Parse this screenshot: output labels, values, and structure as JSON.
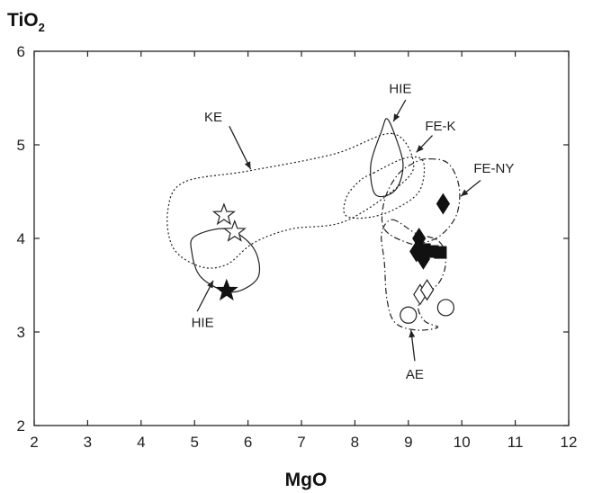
{
  "chart_data": {
    "type": "scatter",
    "title": "",
    "xlabel": "MgO",
    "ylabel": "TiO",
    "ylabel_subscript": "2",
    "xlim": [
      2,
      12
    ],
    "ylim": [
      2,
      6
    ],
    "xticks": [
      2,
      3,
      4,
      5,
      6,
      7,
      8,
      9,
      10,
      11,
      12
    ],
    "yticks": [
      2,
      3,
      4,
      5,
      6
    ],
    "grid": false,
    "series": [
      {
        "marker": "star-open",
        "points": [
          {
            "x": 5.55,
            "y": 4.25
          },
          {
            "x": 5.75,
            "y": 4.07
          }
        ]
      },
      {
        "marker": "star-filled",
        "points": [
          {
            "x": 5.6,
            "y": 3.44
          }
        ]
      },
      {
        "marker": "diamond-filled",
        "points": [
          {
            "x": 9.65,
            "y": 4.37
          },
          {
            "x": 9.2,
            "y": 4.0
          },
          {
            "x": 9.15,
            "y": 3.86
          },
          {
            "x": 9.28,
            "y": 3.78
          }
        ]
      },
      {
        "marker": "square-filled",
        "points": [
          {
            "x": 9.3,
            "y": 3.88
          },
          {
            "x": 9.45,
            "y": 3.86
          },
          {
            "x": 9.6,
            "y": 3.85
          }
        ]
      },
      {
        "marker": "diamond-open",
        "points": [
          {
            "x": 9.22,
            "y": 3.4
          },
          {
            "x": 9.35,
            "y": 3.45
          }
        ]
      },
      {
        "marker": "circle-open",
        "points": [
          {
            "x": 9.0,
            "y": 3.18
          },
          {
            "x": 9.7,
            "y": 3.26
          }
        ]
      }
    ],
    "fields": [
      {
        "style": "solid",
        "points": [
          [
            5.0,
            4.02
          ],
          [
            5.6,
            4.1
          ],
          [
            6.1,
            3.9
          ],
          [
            6.2,
            3.6
          ],
          [
            5.85,
            3.44
          ],
          [
            5.5,
            3.45
          ],
          [
            5.1,
            3.6
          ],
          [
            4.95,
            3.85
          ]
        ]
      },
      {
        "style": "solid",
        "points": [
          [
            8.6,
            5.28
          ],
          [
            8.75,
            5.1
          ],
          [
            8.9,
            4.8
          ],
          [
            8.8,
            4.55
          ],
          [
            8.55,
            4.45
          ],
          [
            8.35,
            4.5
          ],
          [
            8.3,
            4.8
          ],
          [
            8.5,
            5.15
          ]
        ]
      },
      {
        "style": "dotted",
        "points": [
          [
            8.7,
            5.12
          ],
          [
            7.6,
            4.9
          ],
          [
            6.0,
            4.72
          ],
          [
            4.8,
            4.6
          ],
          [
            4.5,
            4.3
          ],
          [
            4.6,
            3.9
          ],
          [
            5.1,
            3.7
          ],
          [
            5.6,
            3.72
          ],
          [
            6.1,
            3.95
          ],
          [
            6.8,
            4.1
          ],
          [
            7.8,
            4.18
          ],
          [
            8.8,
            4.55
          ],
          [
            9.1,
            4.8
          ]
        ]
      },
      {
        "style": "dotted",
        "points": [
          [
            8.35,
            4.7
          ],
          [
            8.95,
            4.86
          ],
          [
            9.28,
            4.82
          ],
          [
            9.2,
            4.5
          ],
          [
            8.7,
            4.3
          ],
          [
            8.2,
            4.22
          ],
          [
            7.82,
            4.25
          ],
          [
            7.85,
            4.45
          ],
          [
            8.1,
            4.62
          ]
        ]
      },
      {
        "style": "dashdot",
        "points": [
          [
            9.4,
            4.85
          ],
          [
            9.75,
            4.8
          ],
          [
            9.95,
            4.55
          ],
          [
            9.9,
            4.25
          ],
          [
            9.6,
            4.03
          ],
          [
            9.25,
            3.95
          ],
          [
            9.0,
            3.95
          ],
          [
            8.55,
            4.1
          ],
          [
            8.55,
            4.4
          ],
          [
            8.8,
            4.68
          ],
          [
            9.15,
            4.82
          ]
        ]
      },
      {
        "style": "dashdot",
        "points": [
          [
            8.7,
            4.2
          ],
          [
            9.15,
            4.05
          ],
          [
            9.55,
            3.98
          ],
          [
            9.7,
            3.8
          ],
          [
            9.6,
            3.55
          ],
          [
            9.2,
            3.3
          ],
          [
            9.3,
            3.12
          ],
          [
            9.55,
            3.05
          ],
          [
            9.15,
            3.02
          ],
          [
            8.75,
            3.1
          ],
          [
            8.6,
            3.35
          ],
          [
            8.55,
            3.75
          ],
          [
            8.5,
            4.05
          ]
        ]
      }
    ],
    "annotations": [
      {
        "text": "KE",
        "x": 5.35,
        "y": 5.3,
        "arrow": [
          5.65,
          5.2,
          6.05,
          4.74
        ]
      },
      {
        "text": "HIE",
        "x": 8.85,
        "y": 5.6,
        "arrow": [
          8.95,
          5.48,
          8.72,
          5.25
        ]
      },
      {
        "text": "FE-K",
        "x": 9.6,
        "y": 5.2,
        "arrow": [
          9.45,
          5.1,
          9.15,
          4.92
        ]
      },
      {
        "text": "FE-NY",
        "x": 10.6,
        "y": 4.75,
        "arrow": [
          10.35,
          4.62,
          9.98,
          4.45
        ]
      },
      {
        "text": "HIE",
        "x": 5.15,
        "y": 3.1,
        "arrow": [
          5.05,
          3.22,
          5.35,
          3.55
        ]
      },
      {
        "text": "AE",
        "x": 9.12,
        "y": 2.55,
        "arrow": [
          9.12,
          2.69,
          9.05,
          3.02
        ]
      }
    ]
  }
}
